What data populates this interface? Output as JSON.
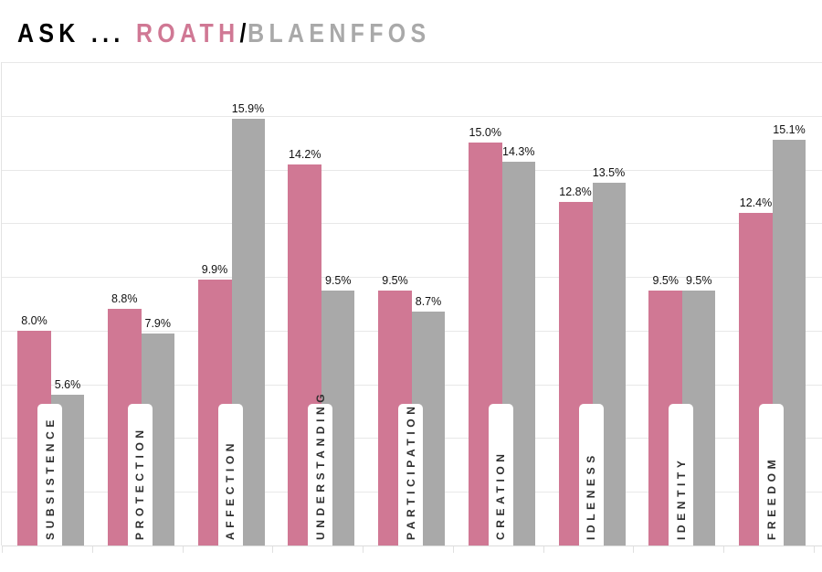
{
  "header": {
    "prefix": "ASK ... ",
    "series1_name": "ROATH",
    "separator": "/",
    "series2_name": "BLAENFFOS"
  },
  "colors": {
    "series1": "#D07894",
    "series2": "#A9A9A9",
    "grid": "#E8E8E8",
    "label_text": "#2E2E2E"
  },
  "chart_data": {
    "type": "bar",
    "title": "ASK ... ROATH/BLAENFFOS",
    "xlabel": "",
    "ylabel": "",
    "ylim": [
      0,
      18
    ],
    "grid": true,
    "gridline_step": 2,
    "legend": "in title (colored series names)",
    "categories": [
      "SUBSISTENCE",
      "PROTECTION",
      "AFFECTION",
      "UNDERSTANDING",
      "PARTICIPATION",
      "CREATION",
      "IDLENESS",
      "IDENTITY",
      "FREEDOM"
    ],
    "series": [
      {
        "name": "ROATH",
        "color": "#D07894",
        "values": [
          8.0,
          8.8,
          9.9,
          14.2,
          9.5,
          15.0,
          12.8,
          9.5,
          12.4
        ],
        "labels": [
          "8.0%",
          "8.8%",
          "9.9%",
          "14.2%",
          "9.5%",
          "15.0%",
          "12.8%",
          "9.5%",
          "12.4%"
        ]
      },
      {
        "name": "BLAENFFOS",
        "color": "#A9A9A9",
        "values": [
          5.6,
          7.9,
          15.9,
          9.5,
          8.7,
          14.3,
          13.5,
          9.5,
          15.1
        ],
        "labels": [
          "5.6%",
          "7.9%",
          "15.9%",
          "9.5%",
          "8.7%",
          "14.3%",
          "13.5%",
          "9.5%",
          "15.1%"
        ]
      }
    ]
  }
}
